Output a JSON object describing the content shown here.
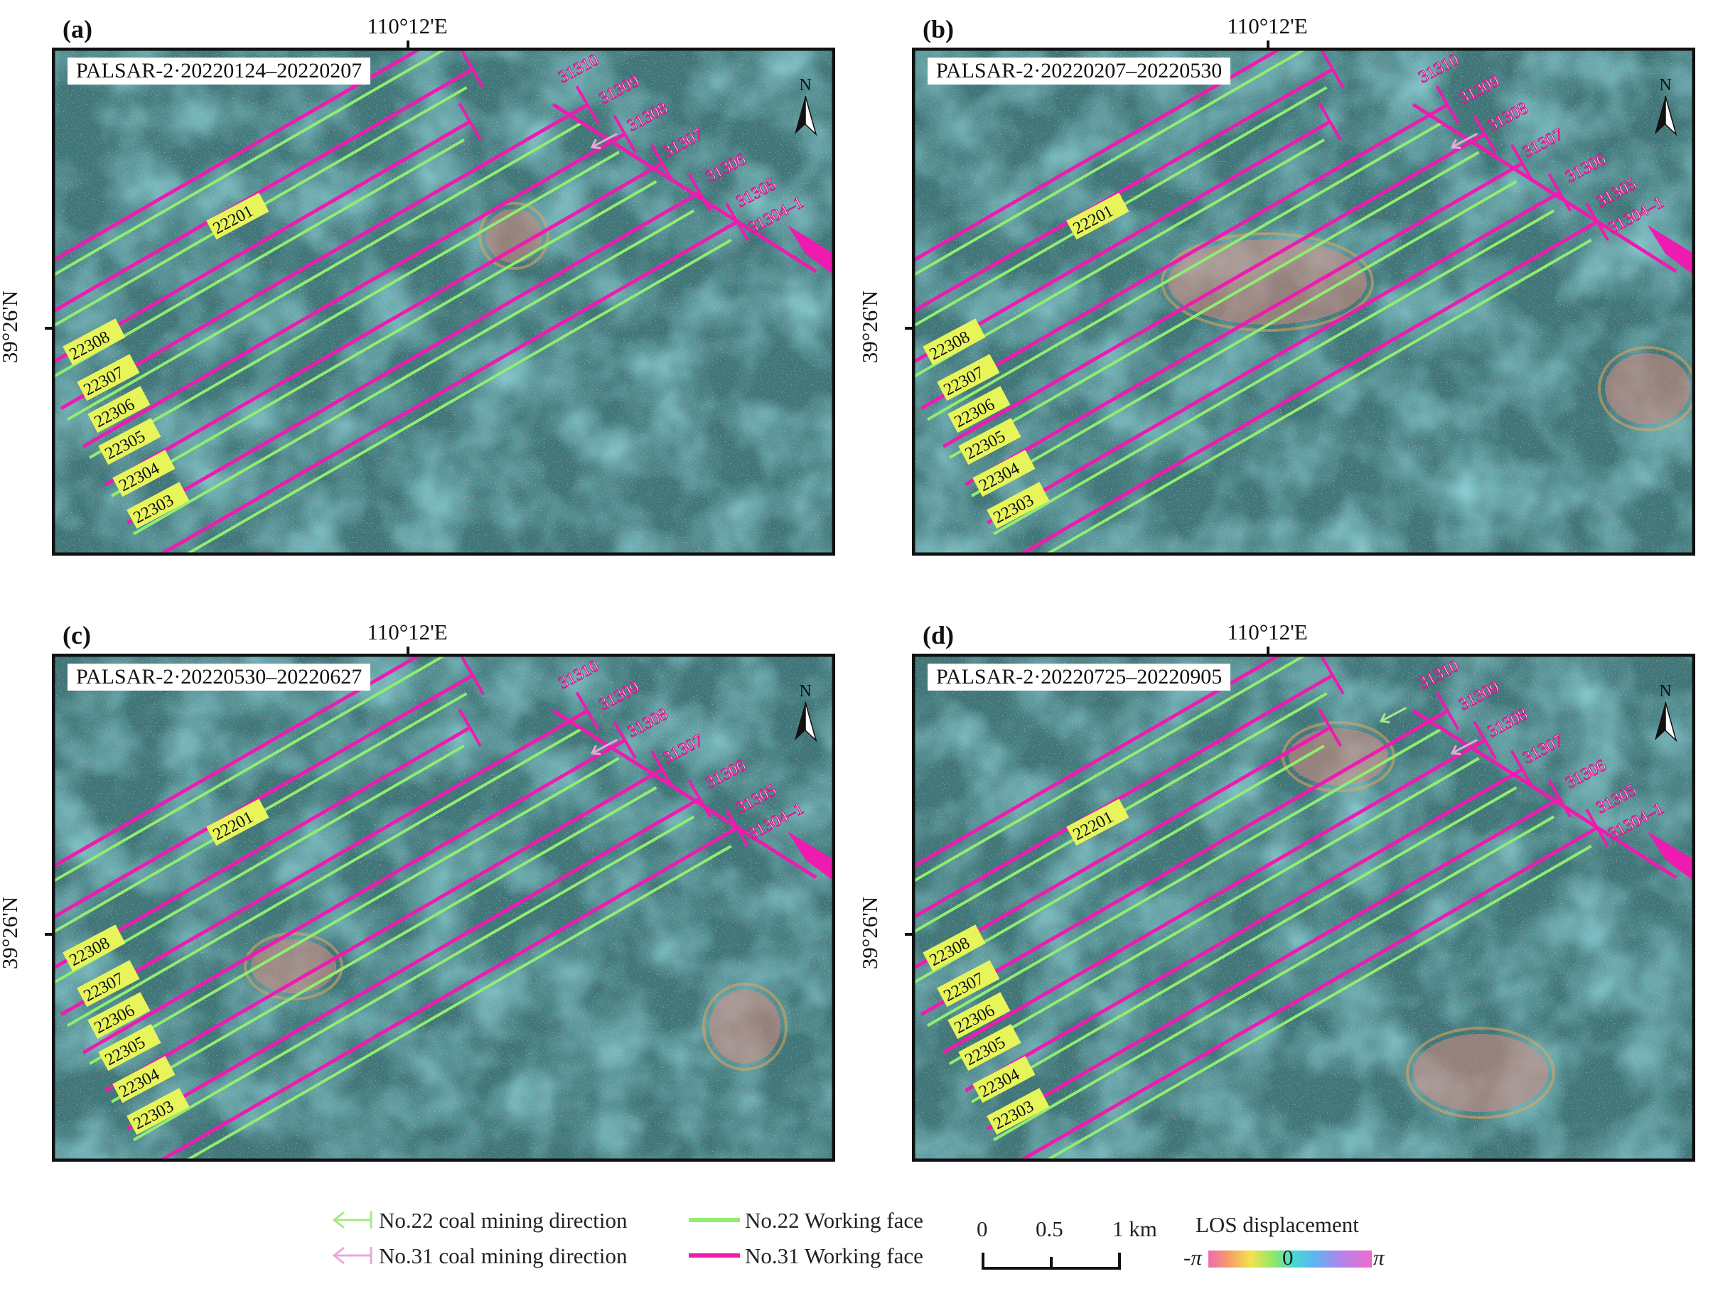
{
  "coordinates": {
    "longitude_label": "110°12'E",
    "latitude_label": "39°26'N"
  },
  "north_arrow": {
    "label": "N"
  },
  "panels": [
    {
      "letter": "(a)",
      "title": "PALSAR-2·20220124–20220207"
    },
    {
      "letter": "(b)",
      "title": "PALSAR-2·20220207–20220530"
    },
    {
      "letter": "(c)",
      "title": "PALSAR-2·20220530–20220627"
    },
    {
      "letter": "(d)",
      "title": "PALSAR-2·20220725–20220905"
    }
  ],
  "working_faces": {
    "no31": [
      "31310",
      "31309",
      "31308",
      "31307",
      "31306",
      "31305",
      "31304–1"
    ],
    "no22": [
      "22201",
      "22308",
      "22307",
      "22306",
      "22305",
      "22304",
      "22303"
    ]
  },
  "legend": {
    "no22_direction": "No.22 coal mining direction",
    "no31_direction": "No.31 coal mining direction",
    "no22_face": "No.22 Working face",
    "no31_face": "No.31 Working face",
    "scale_0": "0",
    "scale_half": "0.5",
    "scale_1": "1 km",
    "los_title": "LOS displacement",
    "los_min": "-π",
    "los_mid": "0",
    "los_max": "π"
  },
  "colors": {
    "no22_face": "#90ee70",
    "no31_face": "#ee1bb0",
    "background_teal": "#3c7d82",
    "direction_no22": "#a6e887",
    "direction_no31": "#e8a8d4"
  }
}
